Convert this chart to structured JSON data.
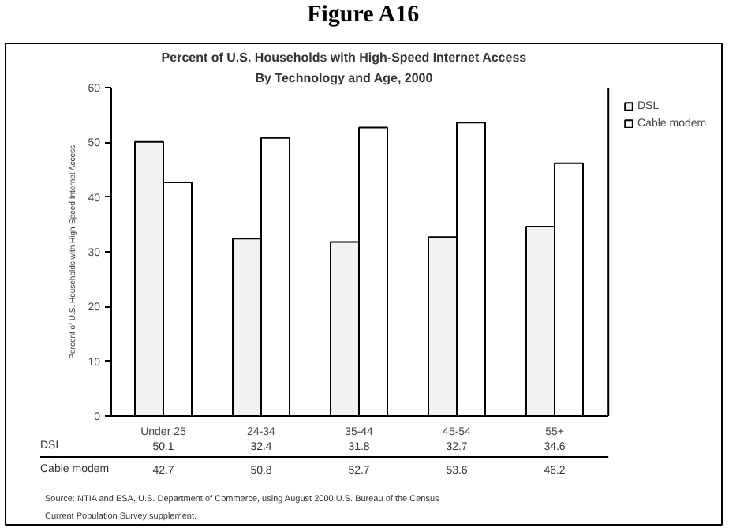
{
  "chart_data": {
    "type": "bar",
    "title": "Figure A16",
    "subtitle": "Percent of U.S. Households with High-Speed Internet Access\nBy Technology and Age, 2000",
    "ylabel": "Percent of U.S. Households with High-Speed Internet Access",
    "categories": [
      "Under 25",
      "24-34",
      "35-44",
      "45-54",
      "55+"
    ],
    "series": [
      {
        "name": "DSL",
        "color": "#f2f2f2",
        "values": [
          50.1,
          32.4,
          31.8,
          32.7,
          34.6
        ]
      },
      {
        "name": "Cable modem",
        "color": "#ffffff",
        "values": [
          42.7,
          50.8,
          52.7,
          53.6,
          46.2
        ]
      }
    ],
    "ylim": [
      0,
      60
    ],
    "yticks": [
      0,
      10,
      20,
      30,
      40,
      50,
      60
    ],
    "grid": false,
    "legend": "right",
    "data_labels": true,
    "annotations": [
      "Source:  NTIA and ESA, U.S. Department of Commerce, using August 2000 U.S. Bureau of the Census\nCurrent Population Survey supplement."
    ]
  }
}
